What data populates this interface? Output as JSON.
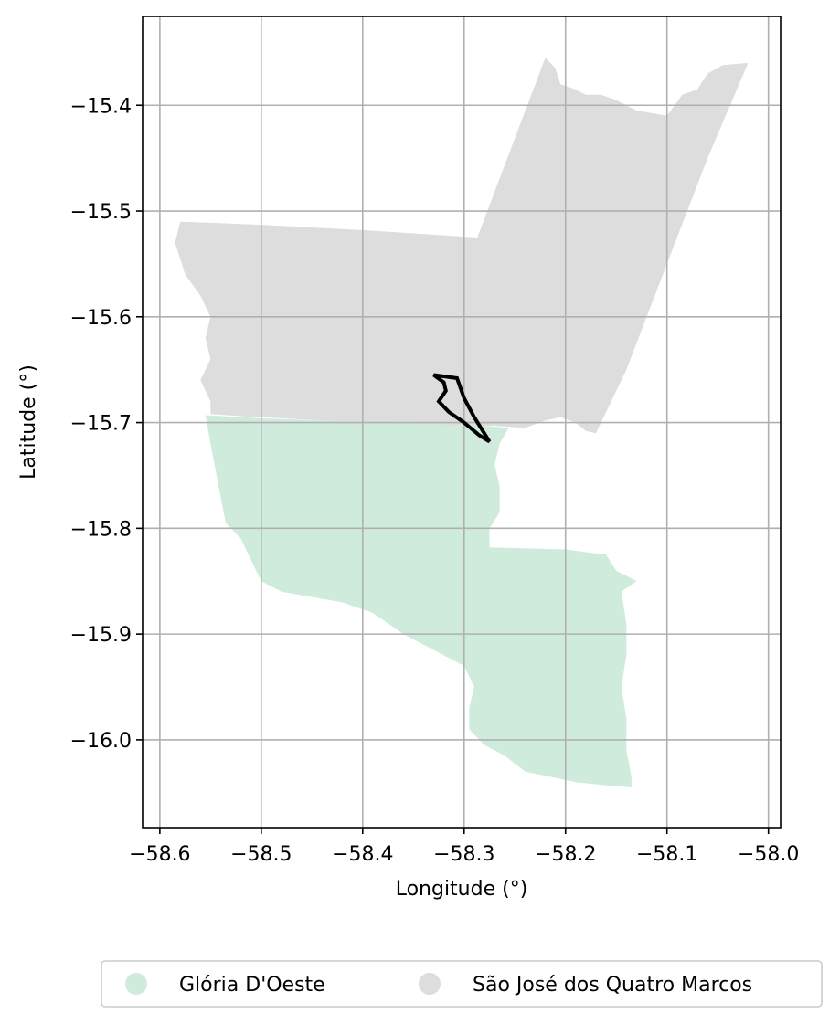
{
  "chart_data": {
    "type": "map",
    "xlabel": "Longitude (°)",
    "ylabel": "Latitude (°)",
    "xlim": [
      -58.617,
      -57.988
    ],
    "ylim": [
      -16.083,
      -15.316
    ],
    "grid": true,
    "legend_placement": "bottom-center",
    "x_ticks": [
      {
        "value": -58.6,
        "label": "−58.6"
      },
      {
        "value": -58.5,
        "label": "−58.5"
      },
      {
        "value": -58.4,
        "label": "−58.4"
      },
      {
        "value": -58.3,
        "label": "−58.3"
      },
      {
        "value": -58.2,
        "label": "−58.2"
      },
      {
        "value": -58.1,
        "label": "−58.1"
      },
      {
        "value": -58.0,
        "label": "−58.0"
      }
    ],
    "y_ticks": [
      {
        "value": -15.4,
        "label": "−15.4"
      },
      {
        "value": -15.5,
        "label": "−15.5"
      },
      {
        "value": -15.6,
        "label": "−15.6"
      },
      {
        "value": -15.7,
        "label": "−15.7"
      },
      {
        "value": -15.8,
        "label": "−15.8"
      },
      {
        "value": -15.9,
        "label": "−15.9"
      },
      {
        "value": -16.0,
        "label": "−16.0"
      }
    ],
    "regions": [
      {
        "name": "São José dos Quatro Marcos",
        "color": "#dddddd",
        "coords": [
          [
            -58.22,
            -15.355
          ],
          [
            -58.21,
            -15.365
          ],
          [
            -58.205,
            -15.38
          ],
          [
            -58.19,
            -15.385
          ],
          [
            -58.18,
            -15.39
          ],
          [
            -58.165,
            -15.39
          ],
          [
            -58.15,
            -15.395
          ],
          [
            -58.13,
            -15.405
          ],
          [
            -58.1,
            -15.41
          ],
          [
            -58.085,
            -15.39
          ],
          [
            -58.07,
            -15.385
          ],
          [
            -58.06,
            -15.37
          ],
          [
            -58.045,
            -15.362
          ],
          [
            -58.02,
            -15.36
          ],
          [
            -58.06,
            -15.45
          ],
          [
            -58.1,
            -15.55
          ],
          [
            -58.14,
            -15.65
          ],
          [
            -58.16,
            -15.69
          ],
          [
            -58.17,
            -15.71
          ],
          [
            -58.18,
            -15.708
          ],
          [
            -58.19,
            -15.7
          ],
          [
            -58.205,
            -15.695
          ],
          [
            -58.22,
            -15.698
          ],
          [
            -58.24,
            -15.705
          ],
          [
            -58.27,
            -15.703
          ],
          [
            -58.3,
            -15.703
          ],
          [
            -58.33,
            -15.702
          ],
          [
            -58.36,
            -15.701
          ],
          [
            -58.4,
            -15.7
          ],
          [
            -58.44,
            -15.698
          ],
          [
            -58.48,
            -15.696
          ],
          [
            -58.52,
            -15.694
          ],
          [
            -58.55,
            -15.692
          ],
          [
            -58.55,
            -15.68
          ],
          [
            -58.56,
            -15.66
          ],
          [
            -58.55,
            -15.64
          ],
          [
            -58.555,
            -15.62
          ],
          [
            -58.55,
            -15.6
          ],
          [
            -58.56,
            -15.58
          ],
          [
            -58.575,
            -15.56
          ],
          [
            -58.585,
            -15.53
          ],
          [
            -58.58,
            -15.51
          ],
          [
            -58.5,
            -15.513
          ],
          [
            -58.4,
            -15.518
          ],
          [
            -58.287,
            -15.525
          ]
        ]
      },
      {
        "name": "Glória D'Oeste",
        "color": "#cfebdc",
        "coords": [
          [
            -58.555,
            -15.693
          ],
          [
            -58.5,
            -15.696
          ],
          [
            -58.44,
            -15.698
          ],
          [
            -58.38,
            -15.7
          ],
          [
            -58.32,
            -15.702
          ],
          [
            -58.28,
            -15.703
          ],
          [
            -58.256,
            -15.705
          ],
          [
            -58.265,
            -15.72
          ],
          [
            -58.27,
            -15.74
          ],
          [
            -58.265,
            -15.76
          ],
          [
            -58.265,
            -15.785
          ],
          [
            -58.275,
            -15.8
          ],
          [
            -58.275,
            -15.818
          ],
          [
            -58.2,
            -15.82
          ],
          [
            -58.16,
            -15.825
          ],
          [
            -58.15,
            -15.84
          ],
          [
            -58.13,
            -15.85
          ],
          [
            -58.145,
            -15.86
          ],
          [
            -58.14,
            -15.89
          ],
          [
            -58.14,
            -15.92
          ],
          [
            -58.145,
            -15.95
          ],
          [
            -58.14,
            -15.98
          ],
          [
            -58.14,
            -16.01
          ],
          [
            -58.135,
            -16.035
          ],
          [
            -58.135,
            -16.045
          ],
          [
            -58.16,
            -16.043
          ],
          [
            -58.19,
            -16.04
          ],
          [
            -58.215,
            -16.035
          ],
          [
            -58.24,
            -16.03
          ],
          [
            -58.26,
            -16.015
          ],
          [
            -58.28,
            -16.005
          ],
          [
            -58.295,
            -15.99
          ],
          [
            -58.295,
            -15.97
          ],
          [
            -58.29,
            -15.95
          ],
          [
            -58.3,
            -15.93
          ],
          [
            -58.33,
            -15.915
          ],
          [
            -58.36,
            -15.9
          ],
          [
            -58.39,
            -15.88
          ],
          [
            -58.42,
            -15.87
          ],
          [
            -58.45,
            -15.865
          ],
          [
            -58.48,
            -15.86
          ],
          [
            -58.5,
            -15.85
          ],
          [
            -58.51,
            -15.83
          ],
          [
            -58.52,
            -15.81
          ],
          [
            -58.535,
            -15.795
          ],
          [
            -58.54,
            -15.77
          ],
          [
            -58.545,
            -15.745
          ],
          [
            -58.55,
            -15.72
          ]
        ]
      }
    ],
    "outline": {
      "color": "#000000",
      "coords": [
        [
          -58.33,
          -15.655
        ],
        [
          -58.307,
          -15.658
        ],
        [
          -58.3,
          -15.677
        ],
        [
          -58.29,
          -15.695
        ],
        [
          -58.275,
          -15.718
        ],
        [
          -58.285,
          -15.712
        ],
        [
          -58.3,
          -15.7
        ],
        [
          -58.315,
          -15.69
        ],
        [
          -58.325,
          -15.68
        ],
        [
          -58.318,
          -15.67
        ],
        [
          -58.32,
          -15.662
        ]
      ]
    },
    "legend": [
      {
        "label": "Glória D'Oeste",
        "color": "#cfebdc"
      },
      {
        "label": "São José dos Quatro Marcos",
        "color": "#dddddd"
      }
    ]
  }
}
